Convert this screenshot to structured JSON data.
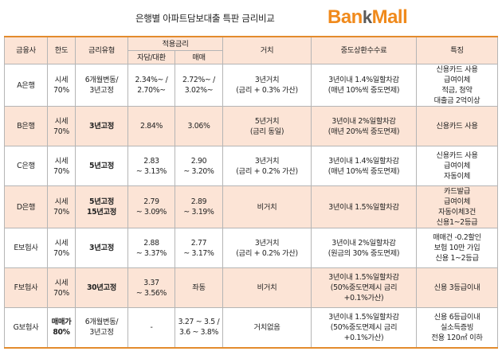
{
  "header": {
    "title": "은행별 아파트담보대출 특판 금리비교",
    "logo": {
      "part1": "Ban",
      "part2": "k",
      "part3": "Mall"
    }
  },
  "columns": {
    "bank": "금융사",
    "limit": "한도",
    "rate_type": "금리유형",
    "applied_rate": "적용금리",
    "self_loan": "자담/대환",
    "purchase": "매매",
    "deferment": "거치",
    "fee": "중도상환수수료",
    "features": "특징"
  },
  "rows": [
    {
      "bank": "A은행",
      "limit": [
        "시세",
        "70%"
      ],
      "rate_type": [
        "6개월변동/",
        "3년고정"
      ],
      "rate_type_bold": false,
      "self_loan": [
        "2.34%~ /",
        "2.70%~"
      ],
      "purchase": [
        "2.72%~ /",
        "3.02%~"
      ],
      "deferment": [
        "3년거치",
        "(금리 + 0.3% 가산)"
      ],
      "fee": [
        "3년이내 1.4%일할차감",
        "(매년 10%씩 중도면제)"
      ],
      "features": [
        "신용카드 사용",
        "급여이체",
        "적금, 청약",
        "대출금 2억이상"
      ]
    },
    {
      "bank": "B은행",
      "limit": [
        "시세",
        "70%"
      ],
      "rate_type": [
        "3년고정"
      ],
      "rate_type_bold": true,
      "self_loan": [
        "2.84%"
      ],
      "purchase": [
        "3.06%"
      ],
      "deferment": [
        "5년거치",
        "(금리 동일)"
      ],
      "fee": [
        "3년이내 2%일할차감",
        "(매년 20%씩 중도면제)"
      ],
      "features": [
        "신용카드 사용"
      ]
    },
    {
      "bank": "C은행",
      "limit": [
        "시세",
        "70%"
      ],
      "rate_type": [
        "5년고정"
      ],
      "rate_type_bold": true,
      "self_loan": [
        "2.83",
        "~ 3.13%"
      ],
      "purchase": [
        "2.90",
        "~ 3.20%"
      ],
      "deferment": [
        "3년거치",
        "(금리 + 0.2% 가산)"
      ],
      "fee": [
        "3년이내 1.4%일할차감",
        "(매년 10%씩 중도면제)"
      ],
      "features": [
        "신용카드 사용",
        "급여이체",
        "자동이체"
      ]
    },
    {
      "bank": "D은행",
      "limit": [
        "시세",
        "70%"
      ],
      "rate_type": [
        "5년고정",
        "15년고정"
      ],
      "rate_type_bold": true,
      "self_loan": [
        "2.79",
        "~ 3.09%"
      ],
      "purchase": [
        "2.89",
        "~ 3.19%"
      ],
      "deferment": [
        "비거치"
      ],
      "fee": [
        "3년이내 1.5%일할차감"
      ],
      "features": [
        "카드발급",
        "급여이체",
        "자동이체3건",
        "신용1~2등급"
      ]
    },
    {
      "bank": "E보험사",
      "limit": [
        "시세",
        "70%"
      ],
      "rate_type": [
        "3년고정"
      ],
      "rate_type_bold": true,
      "self_loan": [
        "2.88",
        "~ 3.37%"
      ],
      "purchase": [
        "2.77",
        "~ 3.17%"
      ],
      "deferment": [
        "3년거치",
        "(금리 + 0.2% 가산)"
      ],
      "fee": [
        "3년이내 2%일할차감",
        "(원금의 30% 중도면제)"
      ],
      "features": [
        "매매건 -0.2할인",
        "보험 10만 가입",
        "신용 1~2등급"
      ]
    },
    {
      "bank": "F보험사",
      "limit": [
        "시세",
        "70%"
      ],
      "rate_type": [
        "30년고정"
      ],
      "rate_type_bold": true,
      "self_loan": [
        "3.37",
        "~ 3.56%"
      ],
      "purchase": [
        "좌동"
      ],
      "deferment": [
        "비거치"
      ],
      "fee": [
        "3년이내 1.5%일할차감",
        "(50%중도면제시 금리",
        "+0.1%가산)"
      ],
      "features": [
        "신용 3등급이내"
      ]
    },
    {
      "bank": "G보험사",
      "limit": [
        "매매가",
        "80%"
      ],
      "limit_bold": true,
      "rate_type": [
        "6개월변동/",
        "3년고정"
      ],
      "rate_type_bold": false,
      "self_loan": [
        "-"
      ],
      "purchase": [
        "3.27 ~ 3.5 /",
        "3.6 ~ 3.8%"
      ],
      "deferment": [
        "거치없음"
      ],
      "fee": [
        "3년이내 1.5%일할차감",
        "(50%중도면제시 금리",
        "+0.1%가산)"
      ],
      "features": [
        "신용 6등급이내",
        "실소득증빙",
        "전용 120㎡ 이하"
      ]
    }
  ]
}
